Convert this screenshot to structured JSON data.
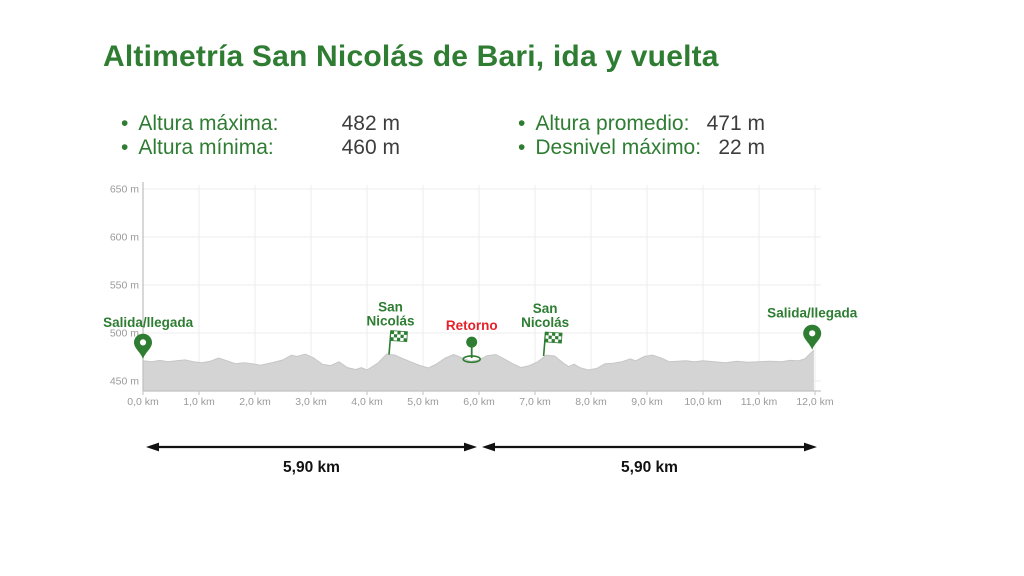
{
  "title": "Altimetría San Nicolás de Bari, ida y vuelta",
  "stats": [
    {
      "label": "Altura máxima:",
      "value": "482 m"
    },
    {
      "label": "Altura mínima:",
      "value": "460 m"
    },
    {
      "label": "Altura promedio:",
      "value": "471 m"
    },
    {
      "label": "Desnivel máximo:",
      "value": "22 m"
    }
  ],
  "colors": {
    "green": "#2e7d32",
    "red": "#e62129",
    "area_fill": "#d4d4d4",
    "area_stroke": "#c6c6c6",
    "grid": "#ededed",
    "axis": "#c2c2c2",
    "tick_text": "#9a9a9a",
    "arrow": "#111111"
  },
  "chart_data": {
    "type": "area",
    "grid": true,
    "xlim": [
      0,
      12.1
    ],
    "ylim": [
      439,
      654
    ],
    "x_tick_values": [
      0,
      1,
      2,
      3,
      4,
      5,
      6,
      7,
      8,
      9,
      10,
      11,
      12
    ],
    "x_ticks": [
      "0,0 km",
      "1,0 km",
      "2,0 km",
      "3,0 km",
      "4,0 km",
      "5,0 km",
      "6,0 km",
      "7,0 km",
      "8,0 km",
      "9,0 km",
      "10,0 km",
      "11,0 km",
      "12,0 km"
    ],
    "y_tick_values": [
      450,
      500,
      550,
      600,
      650
    ],
    "y_ticks": [
      "450 m",
      "500 m",
      "550 m",
      "600 m",
      "650 m"
    ],
    "points": [
      [
        0.0,
        471
      ],
      [
        0.15,
        470
      ],
      [
        0.3,
        471.5
      ],
      [
        0.45,
        470
      ],
      [
        0.6,
        471
      ],
      [
        0.75,
        472
      ],
      [
        0.9,
        470
      ],
      [
        1.05,
        469
      ],
      [
        1.2,
        470.5
      ],
      [
        1.35,
        474
      ],
      [
        1.5,
        471
      ],
      [
        1.65,
        468
      ],
      [
        1.8,
        469
      ],
      [
        1.95,
        468
      ],
      [
        2.1,
        466.5
      ],
      [
        2.3,
        469
      ],
      [
        2.5,
        472
      ],
      [
        2.65,
        477
      ],
      [
        2.75,
        475.5
      ],
      [
        2.9,
        478
      ],
      [
        3.05,
        474
      ],
      [
        3.2,
        467.5
      ],
      [
        3.35,
        466
      ],
      [
        3.5,
        470
      ],
      [
        3.65,
        464
      ],
      [
        3.8,
        462
      ],
      [
        3.9,
        464
      ],
      [
        4.0,
        461.5
      ],
      [
        4.1,
        465
      ],
      [
        4.2,
        469
      ],
      [
        4.35,
        478
      ],
      [
        4.5,
        477
      ],
      [
        4.65,
        473
      ],
      [
        4.8,
        469.5
      ],
      [
        4.95,
        466
      ],
      [
        5.1,
        463.5
      ],
      [
        5.25,
        468
      ],
      [
        5.4,
        474
      ],
      [
        5.55,
        477.5
      ],
      [
        5.7,
        474
      ],
      [
        5.85,
        470.5
      ],
      [
        6.0,
        472
      ],
      [
        6.15,
        476.5
      ],
      [
        6.3,
        477.5
      ],
      [
        6.45,
        473
      ],
      [
        6.6,
        468
      ],
      [
        6.75,
        464
      ],
      [
        6.9,
        466
      ],
      [
        7.05,
        470
      ],
      [
        7.2,
        477
      ],
      [
        7.35,
        476
      ],
      [
        7.5,
        469
      ],
      [
        7.6,
        465
      ],
      [
        7.7,
        467.5
      ],
      [
        7.8,
        464
      ],
      [
        7.95,
        461.5
      ],
      [
        8.1,
        463
      ],
      [
        8.25,
        468
      ],
      [
        8.4,
        468.5
      ],
      [
        8.55,
        470
      ],
      [
        8.7,
        473
      ],
      [
        8.8,
        471
      ],
      [
        8.95,
        475.5
      ],
      [
        9.1,
        477
      ],
      [
        9.25,
        474
      ],
      [
        9.4,
        470
      ],
      [
        9.55,
        470.5
      ],
      [
        9.7,
        471
      ],
      [
        9.85,
        470
      ],
      [
        10.0,
        471
      ],
      [
        10.2,
        470
      ],
      [
        10.4,
        469
      ],
      [
        10.6,
        470.5
      ],
      [
        10.8,
        469.5
      ],
      [
        11.0,
        470
      ],
      [
        11.2,
        470.5
      ],
      [
        11.4,
        470
      ],
      [
        11.55,
        471.5
      ],
      [
        11.7,
        471
      ],
      [
        11.82,
        473
      ],
      [
        11.92,
        479
      ],
      [
        11.98,
        482
      ]
    ],
    "markers": [
      {
        "id": "salida-left",
        "type": "map-pin",
        "lines": [
          "Salida/llegada"
        ],
        "km": 0.0,
        "color": "green"
      },
      {
        "id": "san-nicolas-ida",
        "type": "checkered-flag",
        "lines": [
          "San",
          "Nicolás"
        ],
        "km": 4.42,
        "color": "green"
      },
      {
        "id": "retorno",
        "type": "round-pin",
        "lines": [
          "Retorno"
        ],
        "km": 5.87,
        "color": "red"
      },
      {
        "id": "san-nicolas-vuelta",
        "type": "checkered-flag",
        "lines": [
          "San",
          "Nicolás"
        ],
        "km": 7.18,
        "color": "green"
      },
      {
        "id": "salida-right",
        "type": "map-pin",
        "lines": [
          "Salida/llegada"
        ],
        "km": 11.95,
        "color": "green"
      }
    ]
  },
  "segments": [
    {
      "label": "5,90 km"
    },
    {
      "label": "5,90 km"
    }
  ]
}
